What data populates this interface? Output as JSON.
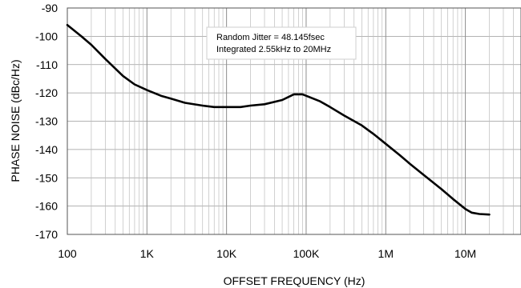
{
  "chart_data": {
    "type": "line",
    "xlabel": "OFFSET FREQUENCY (Hz)",
    "ylabel": "PHASE NOISE (dBc/Hz)",
    "x_scale": "log",
    "xlim": [
      100,
      50000000
    ],
    "ylim": [
      -170,
      -90
    ],
    "x_ticks": [
      {
        "value": 100,
        "label": "100"
      },
      {
        "value": 1000,
        "label": "1K"
      },
      {
        "value": 10000,
        "label": "10K"
      },
      {
        "value": 100000,
        "label": "100K"
      },
      {
        "value": 1000000,
        "label": "1M"
      },
      {
        "value": 10000000,
        "label": "10M"
      }
    ],
    "y_ticks": [
      {
        "value": -90,
        "label": "-90"
      },
      {
        "value": -100,
        "label": "-100"
      },
      {
        "value": -110,
        "label": "-110"
      },
      {
        "value": -120,
        "label": "-120"
      },
      {
        "value": -130,
        "label": "-130"
      },
      {
        "value": -140,
        "label": "-140"
      },
      {
        "value": -150,
        "label": "-150"
      },
      {
        "value": -160,
        "label": "-160"
      },
      {
        "value": -170,
        "label": "-170"
      }
    ],
    "grid": true,
    "annotation": [
      "Random Jitter = 48.145fsec",
      "Integrated 2.55kHz to 20MHz"
    ],
    "series": [
      {
        "x": [
          100,
          150,
          200,
          300,
          500,
          700,
          1000,
          1500,
          2000,
          3000,
          5000,
          7000,
          10000,
          15000,
          20000,
          30000,
          50000,
          70000,
          80000,
          90000,
          100000,
          150000,
          200000,
          300000,
          500000,
          700000,
          1000000,
          1500000,
          2000000,
          3000000,
          5000000,
          7000000,
          10000000,
          12000000,
          15000000,
          20000000
        ],
        "y": [
          -96,
          -100,
          -103,
          -108,
          -114,
          -117,
          -119,
          -121,
          -122,
          -123.5,
          -124.5,
          -125,
          -125,
          -125,
          -124.5,
          -124,
          -122.5,
          -120.5,
          -120.5,
          -120.5,
          -121,
          -123,
          -125,
          -128,
          -131.5,
          -134.5,
          -138,
          -142,
          -145,
          -149,
          -154,
          -157.5,
          -161,
          -162.3,
          -162.8,
          -163
        ]
      }
    ]
  }
}
